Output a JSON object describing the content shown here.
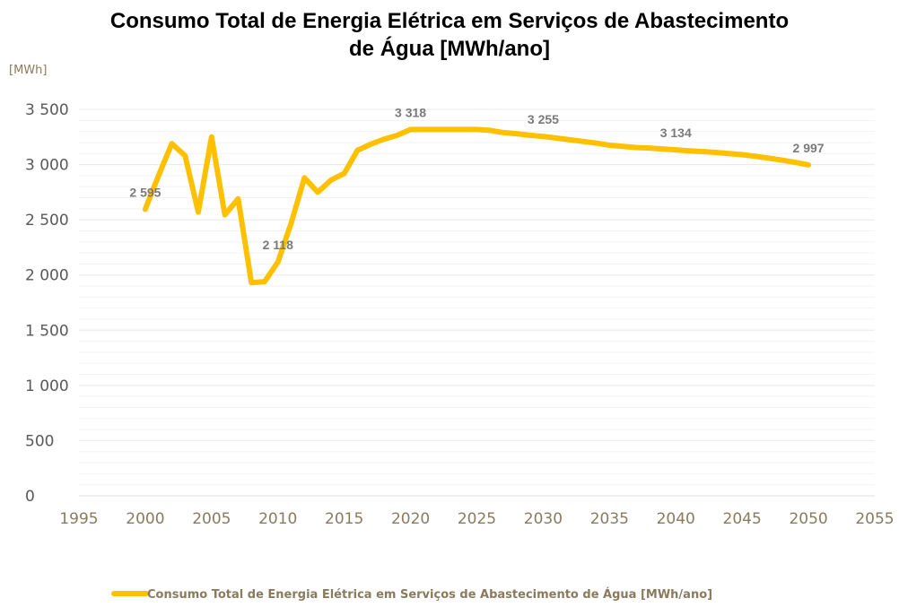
{
  "chart_data": {
    "type": "line",
    "title_lines": [
      "Consumo Total de Energia Elétrica em Serviços de Abastecimento",
      "de Água [MWh/ano]"
    ],
    "unit_label": "[MWh]",
    "xlim": [
      1995,
      2055
    ],
    "ylim": [
      0,
      3500
    ],
    "x_ticks": [
      1995,
      2000,
      2005,
      2010,
      2015,
      2020,
      2025,
      2030,
      2035,
      2040,
      2045,
      2050,
      2055
    ],
    "y_ticks": [
      0,
      500,
      1000,
      1500,
      2000,
      2500,
      3000,
      3500
    ],
    "x_tick_labels": [
      "1995",
      "2000",
      "2005",
      "2010",
      "2015",
      "2020",
      "2025",
      "2030",
      "2035",
      "2040",
      "2045",
      "2050",
      "2055"
    ],
    "y_tick_labels": [
      "0",
      "500",
      "1 000",
      "1 500",
      "2 000",
      "2 500",
      "3 000",
      "3 500"
    ],
    "grid": "horizontal",
    "legend_position": "bottom",
    "series": [
      {
        "name": "Consumo Total de Energia Elétrica em Serviços de Abastecimento de Água [MWh/ano]",
        "color": "#FFC000",
        "x": [
          2000,
          2001,
          2002,
          2003,
          2004,
          2005,
          2006,
          2007,
          2008,
          2009,
          2010,
          2011,
          2012,
          2013,
          2014,
          2015,
          2016,
          2017,
          2018,
          2019,
          2020,
          2021,
          2022,
          2023,
          2024,
          2025,
          2026,
          2027,
          2028,
          2029,
          2030,
          2031,
          2032,
          2033,
          2034,
          2035,
          2036,
          2037,
          2038,
          2039,
          2040,
          2041,
          2042,
          2043,
          2044,
          2045,
          2046,
          2047,
          2048,
          2049,
          2050
        ],
        "values": [
          2595,
          2900,
          3190,
          3080,
          2570,
          3250,
          2545,
          2690,
          1930,
          1940,
          2118,
          2470,
          2880,
          2750,
          2860,
          2920,
          3130,
          3185,
          3230,
          3265,
          3318,
          3318,
          3318,
          3318,
          3318,
          3318,
          3310,
          3290,
          3280,
          3265,
          3255,
          3240,
          3225,
          3210,
          3195,
          3175,
          3165,
          3155,
          3150,
          3142,
          3134,
          3125,
          3118,
          3110,
          3100,
          3090,
          3075,
          3058,
          3040,
          3020,
          2997
        ]
      }
    ],
    "data_labels": [
      {
        "x": 2000,
        "y": 2595,
        "text": "2 595"
      },
      {
        "x": 2010,
        "y": 2118,
        "text": "2 118"
      },
      {
        "x": 2020,
        "y": 3318,
        "text": "3 318"
      },
      {
        "x": 2030,
        "y": 3255,
        "text": "3 255"
      },
      {
        "x": 2040,
        "y": 3134,
        "text": "3 134"
      },
      {
        "x": 2050,
        "y": 2997,
        "text": "2 997"
      }
    ]
  }
}
